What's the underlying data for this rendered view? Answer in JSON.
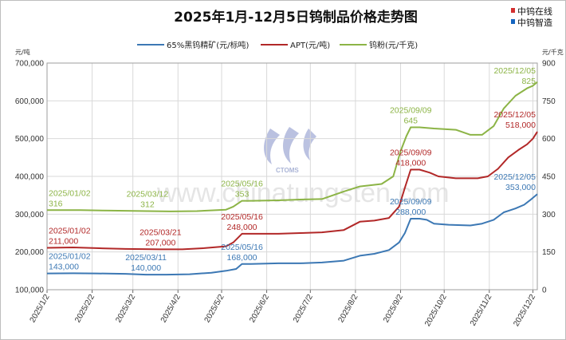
{
  "title": "2025年1月-12月5日钨制品价格走势图",
  "brand": [
    "中钨在线",
    "中钨智造"
  ],
  "watermark": {
    "text": "www.chinatungsten.com",
    "logo_text": "CTOMS"
  },
  "colors": {
    "concentrate": "#3c78b4",
    "apt": "#b22828",
    "powder": "#8cb446",
    "grid": "#d9d9d9"
  },
  "chart_data": {
    "type": "line",
    "title": "2025年1月-12月5日钨制品价格走势图",
    "legend_position": "top",
    "grid": true,
    "x_axis": {
      "range": [
        "2025-01-02",
        "2025-12-05"
      ],
      "ticks": [
        "2025/1/2",
        "2025/2/2",
        "2025/3/2",
        "2025/4/2",
        "2025/5/2",
        "2025/6/2",
        "2025/7/2",
        "2025/8/2",
        "2025/9/2",
        "2025/10/2",
        "2025/11/2",
        "2025/12/2"
      ]
    },
    "y_left": {
      "unit": "元/吨",
      "ylim": [
        100000,
        700000
      ],
      "ticks": [
        "100,000",
        "200,000",
        "300,000",
        "400,000",
        "500,000",
        "600,000",
        "700,000"
      ]
    },
    "y_right": {
      "unit": "元/千克",
      "ylim": [
        0,
        900
      ],
      "ticks": [
        "0",
        "150",
        "300",
        "450",
        "600",
        "750",
        "900"
      ]
    },
    "series": [
      {
        "name": "65%黑钨精矿(元/标吨)",
        "axis": "left",
        "color": "#3c78b4",
        "points": [
          [
            "2025-01-02",
            143000
          ],
          [
            "2025-01-20",
            143500
          ],
          [
            "2025-02-05",
            143000
          ],
          [
            "2025-02-25",
            142000
          ],
          [
            "2025-03-11",
            140000
          ],
          [
            "2025-03-25",
            140000
          ],
          [
            "2025-04-10",
            141000
          ],
          [
            "2025-04-25",
            145000
          ],
          [
            "2025-05-05",
            150000
          ],
          [
            "2025-05-12",
            155000
          ],
          [
            "2025-05-16",
            168000
          ],
          [
            "2025-05-22",
            168000
          ],
          [
            "2025-06-10",
            170000
          ],
          [
            "2025-06-25",
            170000
          ],
          [
            "2025-07-10",
            172000
          ],
          [
            "2025-07-25",
            177000
          ],
          [
            "2025-08-05",
            190000
          ],
          [
            "2025-08-15",
            195000
          ],
          [
            "2025-08-25",
            205000
          ],
          [
            "2025-09-01",
            225000
          ],
          [
            "2025-09-05",
            250000
          ],
          [
            "2025-09-09",
            288000
          ],
          [
            "2025-09-15",
            288000
          ],
          [
            "2025-09-20",
            285000
          ],
          [
            "2025-09-25",
            275000
          ],
          [
            "2025-10-05",
            272000
          ],
          [
            "2025-10-20",
            270000
          ],
          [
            "2025-10-28",
            275000
          ],
          [
            "2025-11-05",
            285000
          ],
          [
            "2025-11-12",
            305000
          ],
          [
            "2025-11-20",
            315000
          ],
          [
            "2025-11-26",
            325000
          ],
          [
            "2025-12-01",
            340000
          ],
          [
            "2025-12-05",
            353000
          ]
        ]
      },
      {
        "name": "APT(元/吨)",
        "axis": "left",
        "color": "#b22828",
        "points": [
          [
            "2025-01-02",
            211000
          ],
          [
            "2025-01-20",
            212000
          ],
          [
            "2025-02-05",
            210000
          ],
          [
            "2025-02-25",
            208000
          ],
          [
            "2025-03-21",
            207000
          ],
          [
            "2025-04-05",
            207000
          ],
          [
            "2025-04-20",
            210000
          ],
          [
            "2025-05-05",
            215000
          ],
          [
            "2025-05-10",
            225000
          ],
          [
            "2025-05-16",
            248000
          ],
          [
            "2025-05-22",
            248000
          ],
          [
            "2025-06-10",
            248000
          ],
          [
            "2025-06-25",
            250000
          ],
          [
            "2025-07-10",
            252000
          ],
          [
            "2025-07-25",
            258000
          ],
          [
            "2025-08-05",
            280000
          ],
          [
            "2025-08-15",
            283000
          ],
          [
            "2025-08-25",
            290000
          ],
          [
            "2025-09-01",
            320000
          ],
          [
            "2025-09-05",
            370000
          ],
          [
            "2025-09-09",
            418000
          ],
          [
            "2025-09-15",
            418000
          ],
          [
            "2025-09-22",
            410000
          ],
          [
            "2025-09-28",
            400000
          ],
          [
            "2025-10-10",
            395000
          ],
          [
            "2025-10-25",
            395000
          ],
          [
            "2025-11-01",
            400000
          ],
          [
            "2025-11-08",
            420000
          ],
          [
            "2025-11-15",
            450000
          ],
          [
            "2025-11-22",
            470000
          ],
          [
            "2025-11-28",
            485000
          ],
          [
            "2025-12-02",
            500000
          ],
          [
            "2025-12-05",
            518000
          ]
        ]
      },
      {
        "name": "钨粉(元/千克)",
        "axis": "right",
        "color": "#8cb446",
        "points": [
          [
            "2025-01-02",
            316
          ],
          [
            "2025-01-25",
            316
          ],
          [
            "2025-02-15",
            314
          ],
          [
            "2025-03-12",
            312
          ],
          [
            "2025-03-28",
            311
          ],
          [
            "2025-04-15",
            312
          ],
          [
            "2025-05-05",
            318
          ],
          [
            "2025-05-10",
            330
          ],
          [
            "2025-05-16",
            353
          ],
          [
            "2025-05-22",
            353
          ],
          [
            "2025-06-10",
            355
          ],
          [
            "2025-06-25",
            358
          ],
          [
            "2025-07-10",
            360
          ],
          [
            "2025-07-25",
            390
          ],
          [
            "2025-08-05",
            410
          ],
          [
            "2025-08-20",
            420
          ],
          [
            "2025-08-28",
            450
          ],
          [
            "2025-09-02",
            550
          ],
          [
            "2025-09-06",
            610
          ],
          [
            "2025-09-09",
            645
          ],
          [
            "2025-09-15",
            645
          ],
          [
            "2025-09-25",
            640
          ],
          [
            "2025-10-10",
            635
          ],
          [
            "2025-10-20",
            615
          ],
          [
            "2025-10-28",
            615
          ],
          [
            "2025-11-05",
            650
          ],
          [
            "2025-11-12",
            720
          ],
          [
            "2025-11-20",
            770
          ],
          [
            "2025-11-28",
            800
          ],
          [
            "2025-12-02",
            810
          ],
          [
            "2025-12-05",
            825
          ]
        ]
      }
    ],
    "annotations": [
      {
        "series": 2,
        "lines": [
          "2025/01/02",
          "316"
        ],
        "x": "2025-01-02",
        "y": 316
      },
      {
        "series": 1,
        "lines": [
          "2025/01/02",
          "211,000"
        ],
        "x": "2025-01-02",
        "y": 211000
      },
      {
        "series": 0,
        "lines": [
          "2025/01/02",
          "143,000"
        ],
        "x": "2025-01-02",
        "y": 143000
      },
      {
        "series": 2,
        "lines": [
          "2025/03/12",
          "312"
        ],
        "x": "2025-03-12",
        "y": 312
      },
      {
        "series": 1,
        "lines": [
          "2025/03/21",
          "207,000"
        ],
        "x": "2025-03-21",
        "y": 207000
      },
      {
        "series": 0,
        "lines": [
          "2025/03/11",
          "140,000"
        ],
        "x": "2025-03-11",
        "y": 140000
      },
      {
        "series": 2,
        "lines": [
          "2025/05/16",
          "353"
        ],
        "x": "2025-05-16",
        "y": 353
      },
      {
        "series": 1,
        "lines": [
          "2025/05/16",
          "248,000"
        ],
        "x": "2025-05-16",
        "y": 248000
      },
      {
        "series": 0,
        "lines": [
          "2025/05/16",
          "168,000"
        ],
        "x": "2025-05-16",
        "y": 168000
      },
      {
        "series": 2,
        "lines": [
          "2025/09/09",
          "645"
        ],
        "x": "2025-09-09",
        "y": 645
      },
      {
        "series": 1,
        "lines": [
          "2025/09/09",
          "418,000"
        ],
        "x": "2025-09-09",
        "y": 418000
      },
      {
        "series": 0,
        "lines": [
          "2025/09/09",
          "288,000"
        ],
        "x": "2025-09-09",
        "y": 288000
      },
      {
        "series": 2,
        "lines": [
          "2025/12/05",
          "825"
        ],
        "x": "2025-12-05",
        "y": 825
      },
      {
        "series": 1,
        "lines": [
          "2025/12/05",
          "518,000"
        ],
        "x": "2025-12-05",
        "y": 518000
      },
      {
        "series": 0,
        "lines": [
          "2025/12/05",
          "353,000"
        ],
        "x": "2025-12-05",
        "y": 353000
      }
    ]
  }
}
